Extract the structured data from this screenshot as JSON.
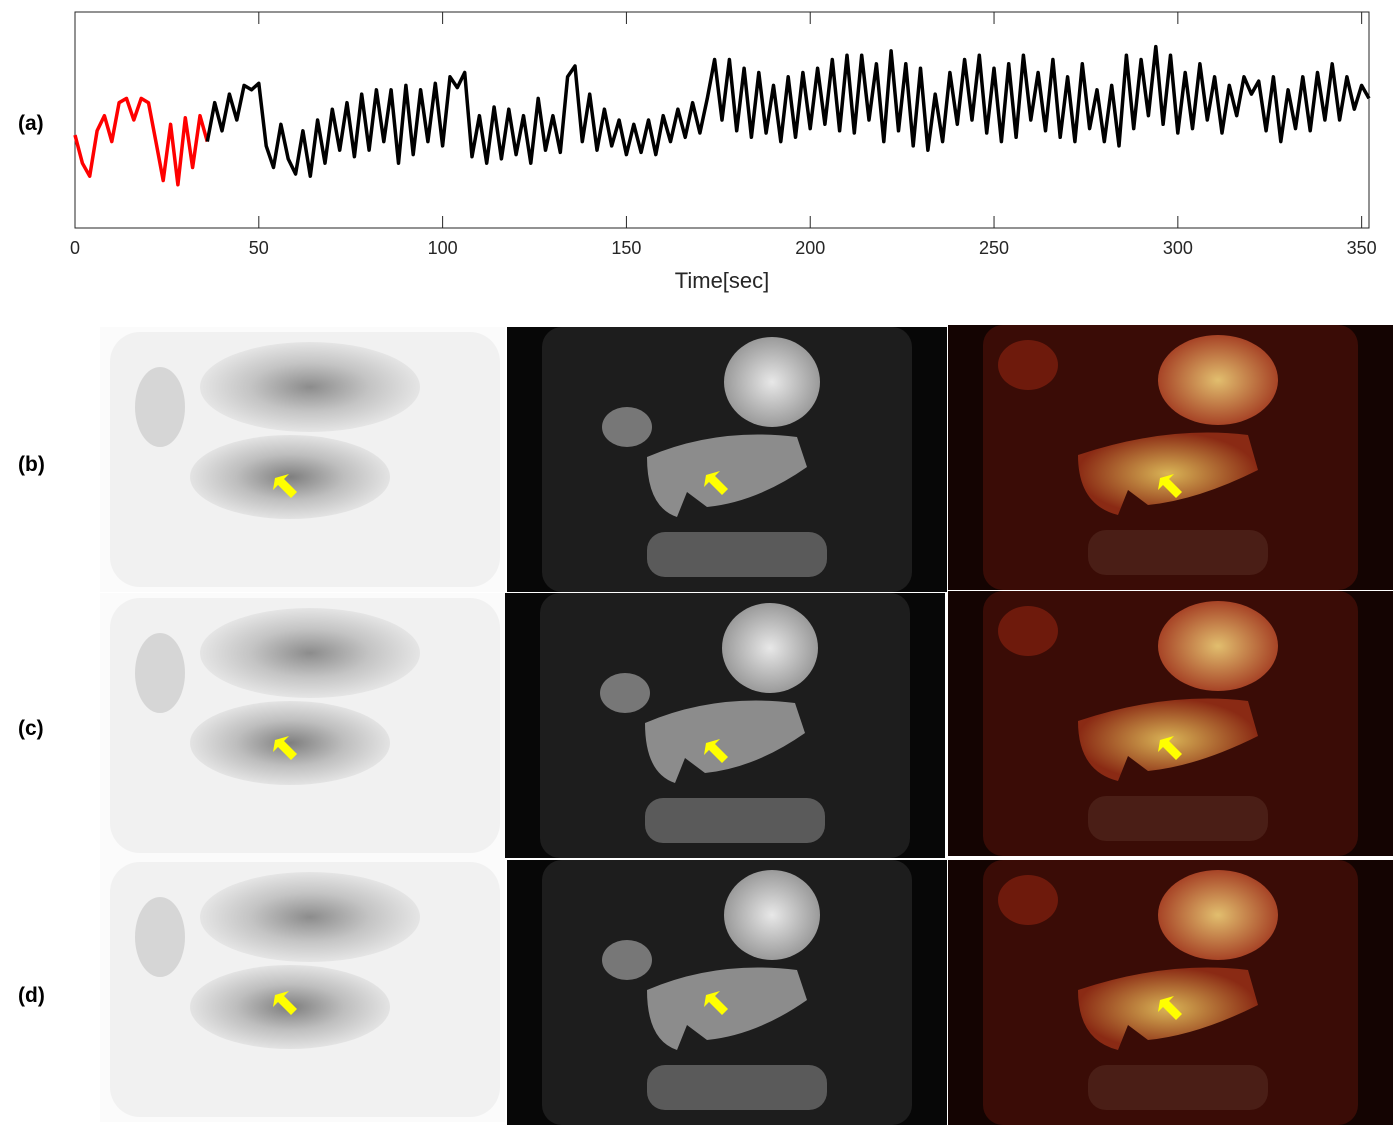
{
  "panel_labels": [
    "(a)",
    "(b)",
    "(c)",
    "(d)"
  ],
  "chart_data": {
    "type": "line",
    "xlabel": "Time[sec]",
    "xlim": [
      0,
      352
    ],
    "xticks": [
      0,
      50,
      100,
      150,
      200,
      250,
      300,
      350
    ],
    "ylim": [
      0,
      1
    ],
    "series": [
      {
        "color": "#ff0000",
        "x": [
          0,
          2,
          4,
          6,
          8,
          10,
          12,
          14,
          16,
          18,
          20,
          22,
          24,
          26,
          28,
          30,
          32,
          34,
          36
        ],
        "values": [
          0.43,
          0.3,
          0.24,
          0.45,
          0.52,
          0.4,
          0.58,
          0.6,
          0.5,
          0.6,
          0.58,
          0.4,
          0.22,
          0.48,
          0.2,
          0.51,
          0.28,
          0.52,
          0.4
        ]
      },
      {
        "color": "#000000",
        "x": [
          36,
          38,
          40,
          42,
          44,
          46,
          48,
          50,
          52,
          54,
          56,
          58,
          60,
          62,
          64,
          66,
          68,
          70,
          72,
          74,
          76,
          78,
          80,
          82,
          84,
          86,
          88,
          90,
          92,
          94,
          96,
          98,
          100,
          102,
          104,
          106,
          108,
          110,
          112,
          114,
          116,
          118,
          120,
          122,
          124,
          126,
          128,
          130,
          132,
          134,
          136,
          138,
          140,
          142,
          144,
          146,
          148,
          150,
          152,
          154,
          156,
          158,
          160,
          162,
          164,
          166,
          168,
          170,
          172,
          174,
          176,
          178,
          180,
          182,
          184,
          186,
          188,
          190,
          192,
          194,
          196,
          198,
          200,
          202,
          204,
          206,
          208,
          210,
          212,
          214,
          216,
          218,
          220,
          222,
          224,
          226,
          228,
          230,
          232,
          234,
          236,
          238,
          240,
          242,
          244,
          246,
          248,
          250,
          252,
          254,
          256,
          258,
          260,
          262,
          264,
          266,
          268,
          270,
          272,
          274,
          276,
          278,
          280,
          282,
          284,
          286,
          288,
          290,
          292,
          294,
          296,
          298,
          300,
          302,
          304,
          306,
          308,
          310,
          312,
          314,
          316,
          318,
          320,
          322,
          324,
          326,
          328,
          330,
          332,
          334,
          336,
          338,
          340,
          342,
          344,
          346,
          348,
          350,
          352
        ],
        "values": [
          0.4,
          0.58,
          0.45,
          0.62,
          0.5,
          0.66,
          0.64,
          0.67,
          0.38,
          0.28,
          0.48,
          0.32,
          0.25,
          0.45,
          0.24,
          0.5,
          0.3,
          0.55,
          0.36,
          0.58,
          0.33,
          0.62,
          0.36,
          0.64,
          0.4,
          0.64,
          0.3,
          0.66,
          0.34,
          0.64,
          0.4,
          0.67,
          0.38,
          0.7,
          0.65,
          0.72,
          0.33,
          0.52,
          0.3,
          0.56,
          0.32,
          0.55,
          0.34,
          0.52,
          0.3,
          0.6,
          0.36,
          0.52,
          0.35,
          0.7,
          0.75,
          0.4,
          0.62,
          0.36,
          0.55,
          0.38,
          0.5,
          0.34,
          0.48,
          0.35,
          0.5,
          0.34,
          0.52,
          0.4,
          0.55,
          0.42,
          0.58,
          0.44,
          0.6,
          0.78,
          0.5,
          0.78,
          0.45,
          0.74,
          0.42,
          0.72,
          0.44,
          0.66,
          0.4,
          0.7,
          0.42,
          0.72,
          0.46,
          0.74,
          0.48,
          0.78,
          0.45,
          0.8,
          0.44,
          0.8,
          0.5,
          0.76,
          0.4,
          0.82,
          0.45,
          0.76,
          0.38,
          0.74,
          0.36,
          0.62,
          0.4,
          0.72,
          0.48,
          0.78,
          0.5,
          0.8,
          0.44,
          0.74,
          0.4,
          0.76,
          0.42,
          0.8,
          0.5,
          0.72,
          0.45,
          0.78,
          0.42,
          0.7,
          0.4,
          0.76,
          0.46,
          0.64,
          0.4,
          0.66,
          0.38,
          0.8,
          0.46,
          0.78,
          0.52,
          0.84,
          0.48,
          0.8,
          0.44,
          0.72,
          0.46,
          0.76,
          0.5,
          0.7,
          0.44,
          0.66,
          0.52,
          0.7,
          0.62,
          0.68,
          0.45,
          0.7,
          0.4,
          0.64,
          0.46,
          0.7,
          0.45,
          0.72,
          0.5,
          0.76,
          0.5,
          0.7,
          0.55,
          0.66,
          0.6
        ]
      }
    ]
  }
}
